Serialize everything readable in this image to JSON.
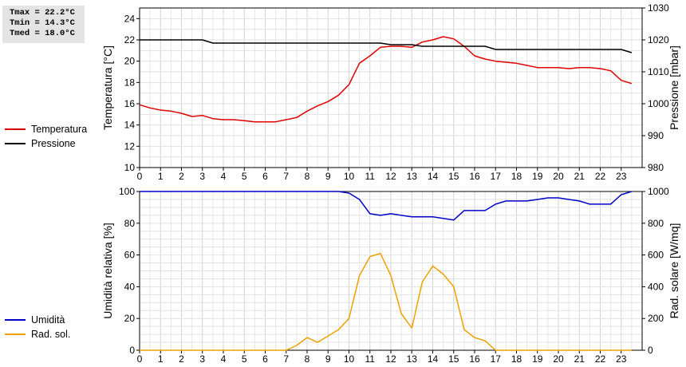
{
  "stats": {
    "tmax": "Tmax = 22.2°C",
    "tmin": "Tmin = 14.3°C",
    "tmed": "Tmed = 18.0°C"
  },
  "legend_top": [
    {
      "label": "Temperatura",
      "color": "#e00000"
    },
    {
      "label": "Pressione",
      "color": "#000000"
    }
  ],
  "legend_bottom": [
    {
      "label": "Umidità",
      "color": "#0000c8"
    },
    {
      "label": "Rad. sol.",
      "color": "#f0a000"
    }
  ],
  "chart_data": [
    {
      "type": "line",
      "x_ticks": [
        "0",
        "1",
        "2",
        "3",
        "4",
        "5",
        "6",
        "7",
        "8",
        "9",
        "10",
        "11",
        "12",
        "13",
        "14",
        "15",
        "16",
        "17",
        "18",
        "19",
        "20",
        "21",
        "22",
        "23"
      ],
      "xlim": [
        0,
        24
      ],
      "ylabel": "Temperatura [°C]",
      "ylim": [
        10,
        25
      ],
      "y_ticks": [
        10,
        12,
        14,
        16,
        18,
        20,
        22,
        24
      ],
      "y2label": "Pressione [mbar]",
      "y2lim": [
        980,
        1030
      ],
      "y2_ticks": [
        980,
        990,
        1000,
        1010,
        1020,
        1030
      ],
      "grid": true,
      "series": [
        {
          "name": "Temperatura",
          "color": "#e00000",
          "axis": "left",
          "x": [
            0,
            0.5,
            1,
            1.5,
            2,
            2.5,
            3,
            3.5,
            4,
            4.5,
            5,
            5.5,
            6,
            6.5,
            7,
            7.5,
            8,
            8.5,
            9,
            9.5,
            10,
            10.5,
            11,
            11.5,
            12,
            12.5,
            13,
            13.5,
            14,
            14.5,
            15,
            15.5,
            16,
            16.5,
            17,
            17.5,
            18,
            18.5,
            19,
            19.5,
            20,
            20.5,
            21,
            21.5,
            22,
            22.5,
            23,
            23.5
          ],
          "y": [
            15.9,
            15.6,
            15.4,
            15.3,
            15.1,
            14.8,
            14.9,
            14.6,
            14.5,
            14.5,
            14.4,
            14.3,
            14.3,
            14.3,
            14.5,
            14.7,
            15.3,
            15.8,
            16.2,
            16.8,
            17.8,
            19.8,
            20.5,
            21.3,
            21.4,
            21.4,
            21.3,
            21.8,
            22.0,
            22.3,
            22.1,
            21.4,
            20.5,
            20.2,
            20.0,
            19.9,
            19.8,
            19.6,
            19.4,
            19.4,
            19.4,
            19.3,
            19.4,
            19.4,
            19.3,
            19.1,
            18.2,
            17.9
          ]
        },
        {
          "name": "Pressione",
          "color": "#000000",
          "axis": "right",
          "x": [
            0,
            3,
            3.5,
            11.5,
            12,
            13,
            13.5,
            16.5,
            17,
            23,
            23.5
          ],
          "y": [
            1020,
            1020,
            1019,
            1019,
            1018.5,
            1018.5,
            1018,
            1018,
            1017,
            1017,
            1016
          ]
        }
      ]
    },
    {
      "type": "line",
      "x_ticks": [
        "0",
        "1",
        "2",
        "3",
        "4",
        "5",
        "6",
        "7",
        "8",
        "9",
        "10",
        "11",
        "12",
        "13",
        "14",
        "15",
        "16",
        "17",
        "18",
        "19",
        "20",
        "21",
        "22",
        "23"
      ],
      "xlim": [
        0,
        24
      ],
      "ylabel": "Umidità relativa [%]",
      "ylim": [
        0,
        100
      ],
      "y_ticks": [
        0,
        20,
        40,
        60,
        80,
        100
      ],
      "y2label": "Rad. solare [W/mq]",
      "y2lim": [
        0,
        1000
      ],
      "y2_ticks": [
        0,
        200,
        400,
        600,
        800,
        1000
      ],
      "grid": true,
      "series": [
        {
          "name": "Umidità",
          "color": "#0000c8",
          "axis": "left",
          "x": [
            0,
            9.5,
            10,
            10.5,
            11,
            11.5,
            12,
            12.5,
            13,
            13.5,
            14,
            14.5,
            15,
            15.5,
            16,
            16.5,
            17,
            17.5,
            18,
            18.5,
            19,
            19.5,
            20,
            20.5,
            21,
            21.5,
            22,
            22.5,
            23,
            23.5
          ],
          "y": [
            100,
            100,
            99,
            95,
            86,
            85,
            86,
            85,
            84,
            84,
            84,
            83,
            82,
            88,
            88,
            88,
            92,
            94,
            94,
            94,
            95,
            96,
            96,
            95,
            94,
            92,
            92,
            92,
            98,
            100
          ]
        },
        {
          "name": "Rad. sol.",
          "color": "#f0a000",
          "axis": "right",
          "x": [
            0,
            7,
            7.5,
            8,
            8.5,
            9,
            9.5,
            10,
            10.5,
            11,
            11.5,
            12,
            12.5,
            13,
            13.5,
            14,
            14.5,
            15,
            15.5,
            16,
            16.5,
            17,
            23.5
          ],
          "y": [
            0,
            0,
            30,
            80,
            50,
            90,
            130,
            200,
            470,
            590,
            610,
            470,
            230,
            140,
            430,
            530,
            480,
            400,
            130,
            80,
            60,
            0,
            0
          ]
        }
      ]
    }
  ]
}
